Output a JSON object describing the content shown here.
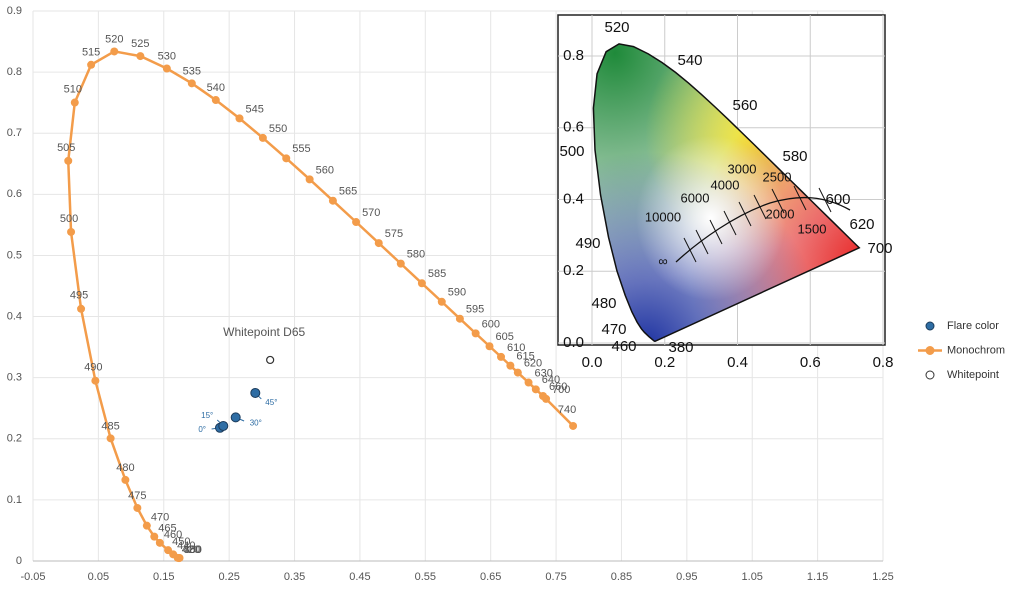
{
  "chart_data": {
    "type": "line",
    "xlim": [
      -0.05,
      1.25
    ],
    "ylim": [
      0,
      0.9
    ],
    "xticks": [
      -0.05,
      0.05,
      0.15,
      0.25,
      0.35,
      0.45,
      0.55,
      0.65,
      0.75,
      0.85,
      0.95,
      1.05,
      1.15,
      1.25
    ],
    "yticks": [
      0,
      0.1,
      0.2,
      0.3,
      0.4,
      0.5,
      0.6,
      0.7,
      0.8,
      0.9
    ],
    "grid": true,
    "legend": "right",
    "series": [
      {
        "name": "Flare color",
        "kind": "scatter",
        "color": "#2e6da4",
        "x": [
          0.236,
          0.241,
          0.26,
          0.29
        ],
        "values": [
          0.218,
          0.221,
          0.235,
          0.275
        ],
        "labels": [
          "0°",
          "15°",
          "30°",
          "45°"
        ]
      },
      {
        "name": "Monochrom",
        "kind": "line",
        "color": "#f39c4a",
        "x": [
          0.1741,
          0.1733,
          0.1714,
          0.1644,
          0.1566,
          0.144,
          0.1355,
          0.1241,
          0.1096,
          0.0913,
          0.0687,
          0.0454,
          0.0235,
          0.0082,
          0.0039,
          0.0139,
          0.0389,
          0.0743,
          0.1142,
          0.1547,
          0.1929,
          0.2296,
          0.2658,
          0.3016,
          0.3373,
          0.3731,
          0.4087,
          0.4441,
          0.4788,
          0.5125,
          0.5448,
          0.5752,
          0.6029,
          0.627,
          0.6482,
          0.6658,
          0.6801,
          0.6915,
          0.7079,
          0.719,
          0.73,
          0.7347,
          0.776
        ],
        "values": [
          0.005,
          0.0048,
          0.0051,
          0.0109,
          0.0177,
          0.0297,
          0.0399,
          0.0578,
          0.0868,
          0.1327,
          0.2007,
          0.295,
          0.4127,
          0.5384,
          0.6548,
          0.7502,
          0.812,
          0.8338,
          0.8262,
          0.8059,
          0.7816,
          0.7543,
          0.7243,
          0.6923,
          0.6589,
          0.6245,
          0.5896,
          0.5547,
          0.5202,
          0.4866,
          0.4544,
          0.4242,
          0.3965,
          0.3725,
          0.3514,
          0.334,
          0.3197,
          0.3083,
          0.292,
          0.2809,
          0.27,
          0.2653,
          0.221
        ],
        "labels": [
          "380",
          "400",
          "420",
          "440",
          "450",
          "460",
          "465",
          "470",
          "475",
          "480",
          "485",
          "490",
          "495",
          "500",
          "505",
          "510",
          "515",
          "520",
          "525",
          "530",
          "535",
          "540",
          "545",
          "550",
          "555",
          "560",
          "565",
          "570",
          "575",
          "580",
          "585",
          "590",
          "595",
          "600",
          "605",
          "610",
          "615",
          "620",
          "630",
          "640",
          "660",
          "700",
          "740"
        ]
      },
      {
        "name": "Whitepoint",
        "kind": "hollow",
        "color": "#333333",
        "x": [
          0.3127
        ],
        "values": [
          0.329
        ],
        "labels": [
          "Whitepoint D65"
        ]
      }
    ]
  },
  "inset": {
    "xticks": [
      {
        "value": 0,
        "label": "0.0"
      },
      0.2,
      0.4,
      0.6,
      0.8
    ],
    "yticks": [
      {
        "value": 0,
        "label": "0.0"
      },
      0.2,
      0.4,
      0.6,
      0.8
    ],
    "wavelength_labels": [
      "520",
      "540",
      "560",
      "580",
      "600",
      "620",
      "700",
      "500",
      "490",
      "480",
      "470",
      "460",
      "380"
    ],
    "cct_labels": [
      "10000",
      "6000",
      "4000",
      "3000",
      "2500",
      "2000",
      "1500",
      "∞"
    ]
  }
}
